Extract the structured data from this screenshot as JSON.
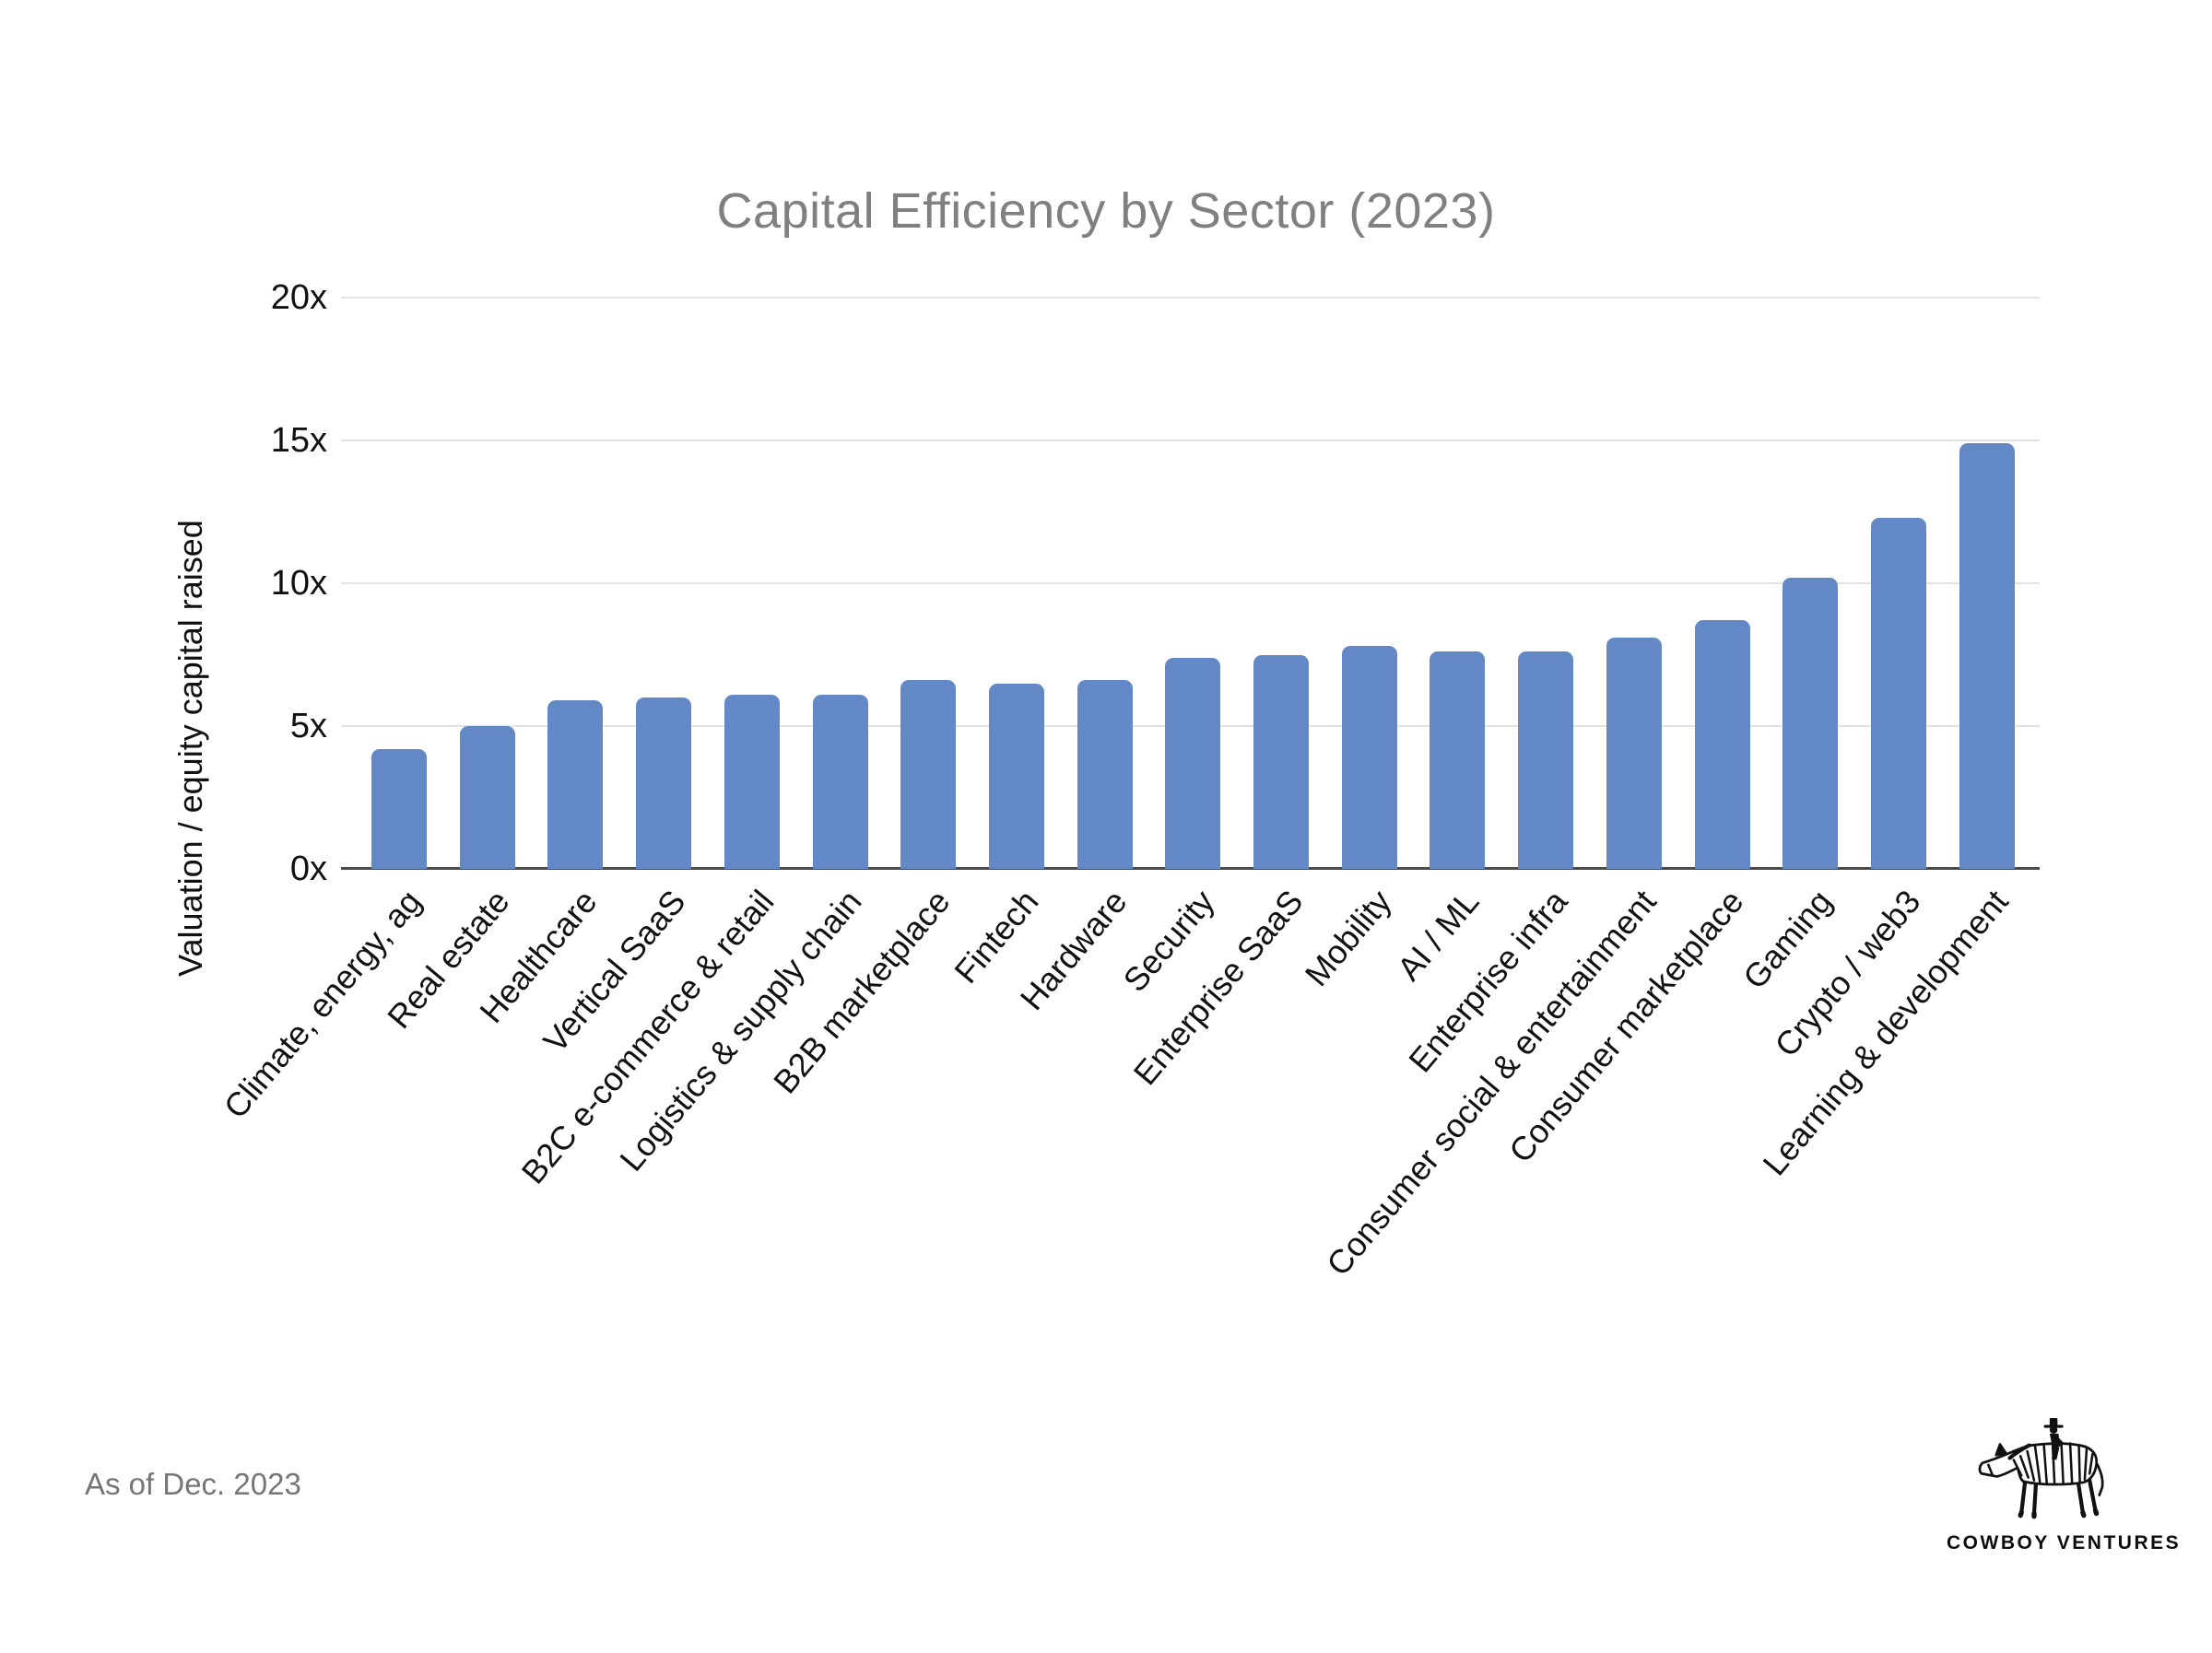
{
  "title": "Capital Efficiency by Sector (2023)",
  "footer": {
    "note": "As of Dec. 2023"
  },
  "logo": {
    "text": "COWBOY VENTURES"
  },
  "colors": {
    "bar": "#6289C6",
    "gridline": "#e2e2e2",
    "axis": "#4a4a4a",
    "title_gray": "#808080",
    "footer_gray": "#757575",
    "label_black": "#111111"
  },
  "chart_data": {
    "type": "bar",
    "title": "Capital Efficiency by Sector (2023)",
    "xlabel": "",
    "ylabel": "Valuation / equity capital raised",
    "ylim": [
      0,
      20
    ],
    "yticks": [
      0,
      5,
      10,
      15,
      20
    ],
    "ytick_labels": [
      "0x",
      "5x",
      "10x",
      "15x",
      "20x"
    ],
    "grid": true,
    "legend": false,
    "categories": [
      "Climate, energy, ag",
      "Real estate",
      "Healthcare",
      "Vertical SaaS",
      "B2C e-commerce & retail",
      "Logistics & supply chain",
      "B2B marketplace",
      "Fintech",
      "Hardware",
      "Security",
      "Enterprise SaaS",
      "Mobility",
      "AI / ML",
      "Enterprise infra",
      "Consumer social & entertainment",
      "Consumer marketplace",
      "Gaming",
      "Crypto / web3",
      "Learning & development"
    ],
    "values": [
      4.2,
      5.0,
      5.9,
      6.0,
      6.1,
      6.1,
      6.6,
      6.5,
      6.6,
      7.4,
      7.5,
      7.8,
      7.6,
      7.6,
      8.1,
      8.7,
      10.2,
      12.3,
      14.9
    ]
  }
}
